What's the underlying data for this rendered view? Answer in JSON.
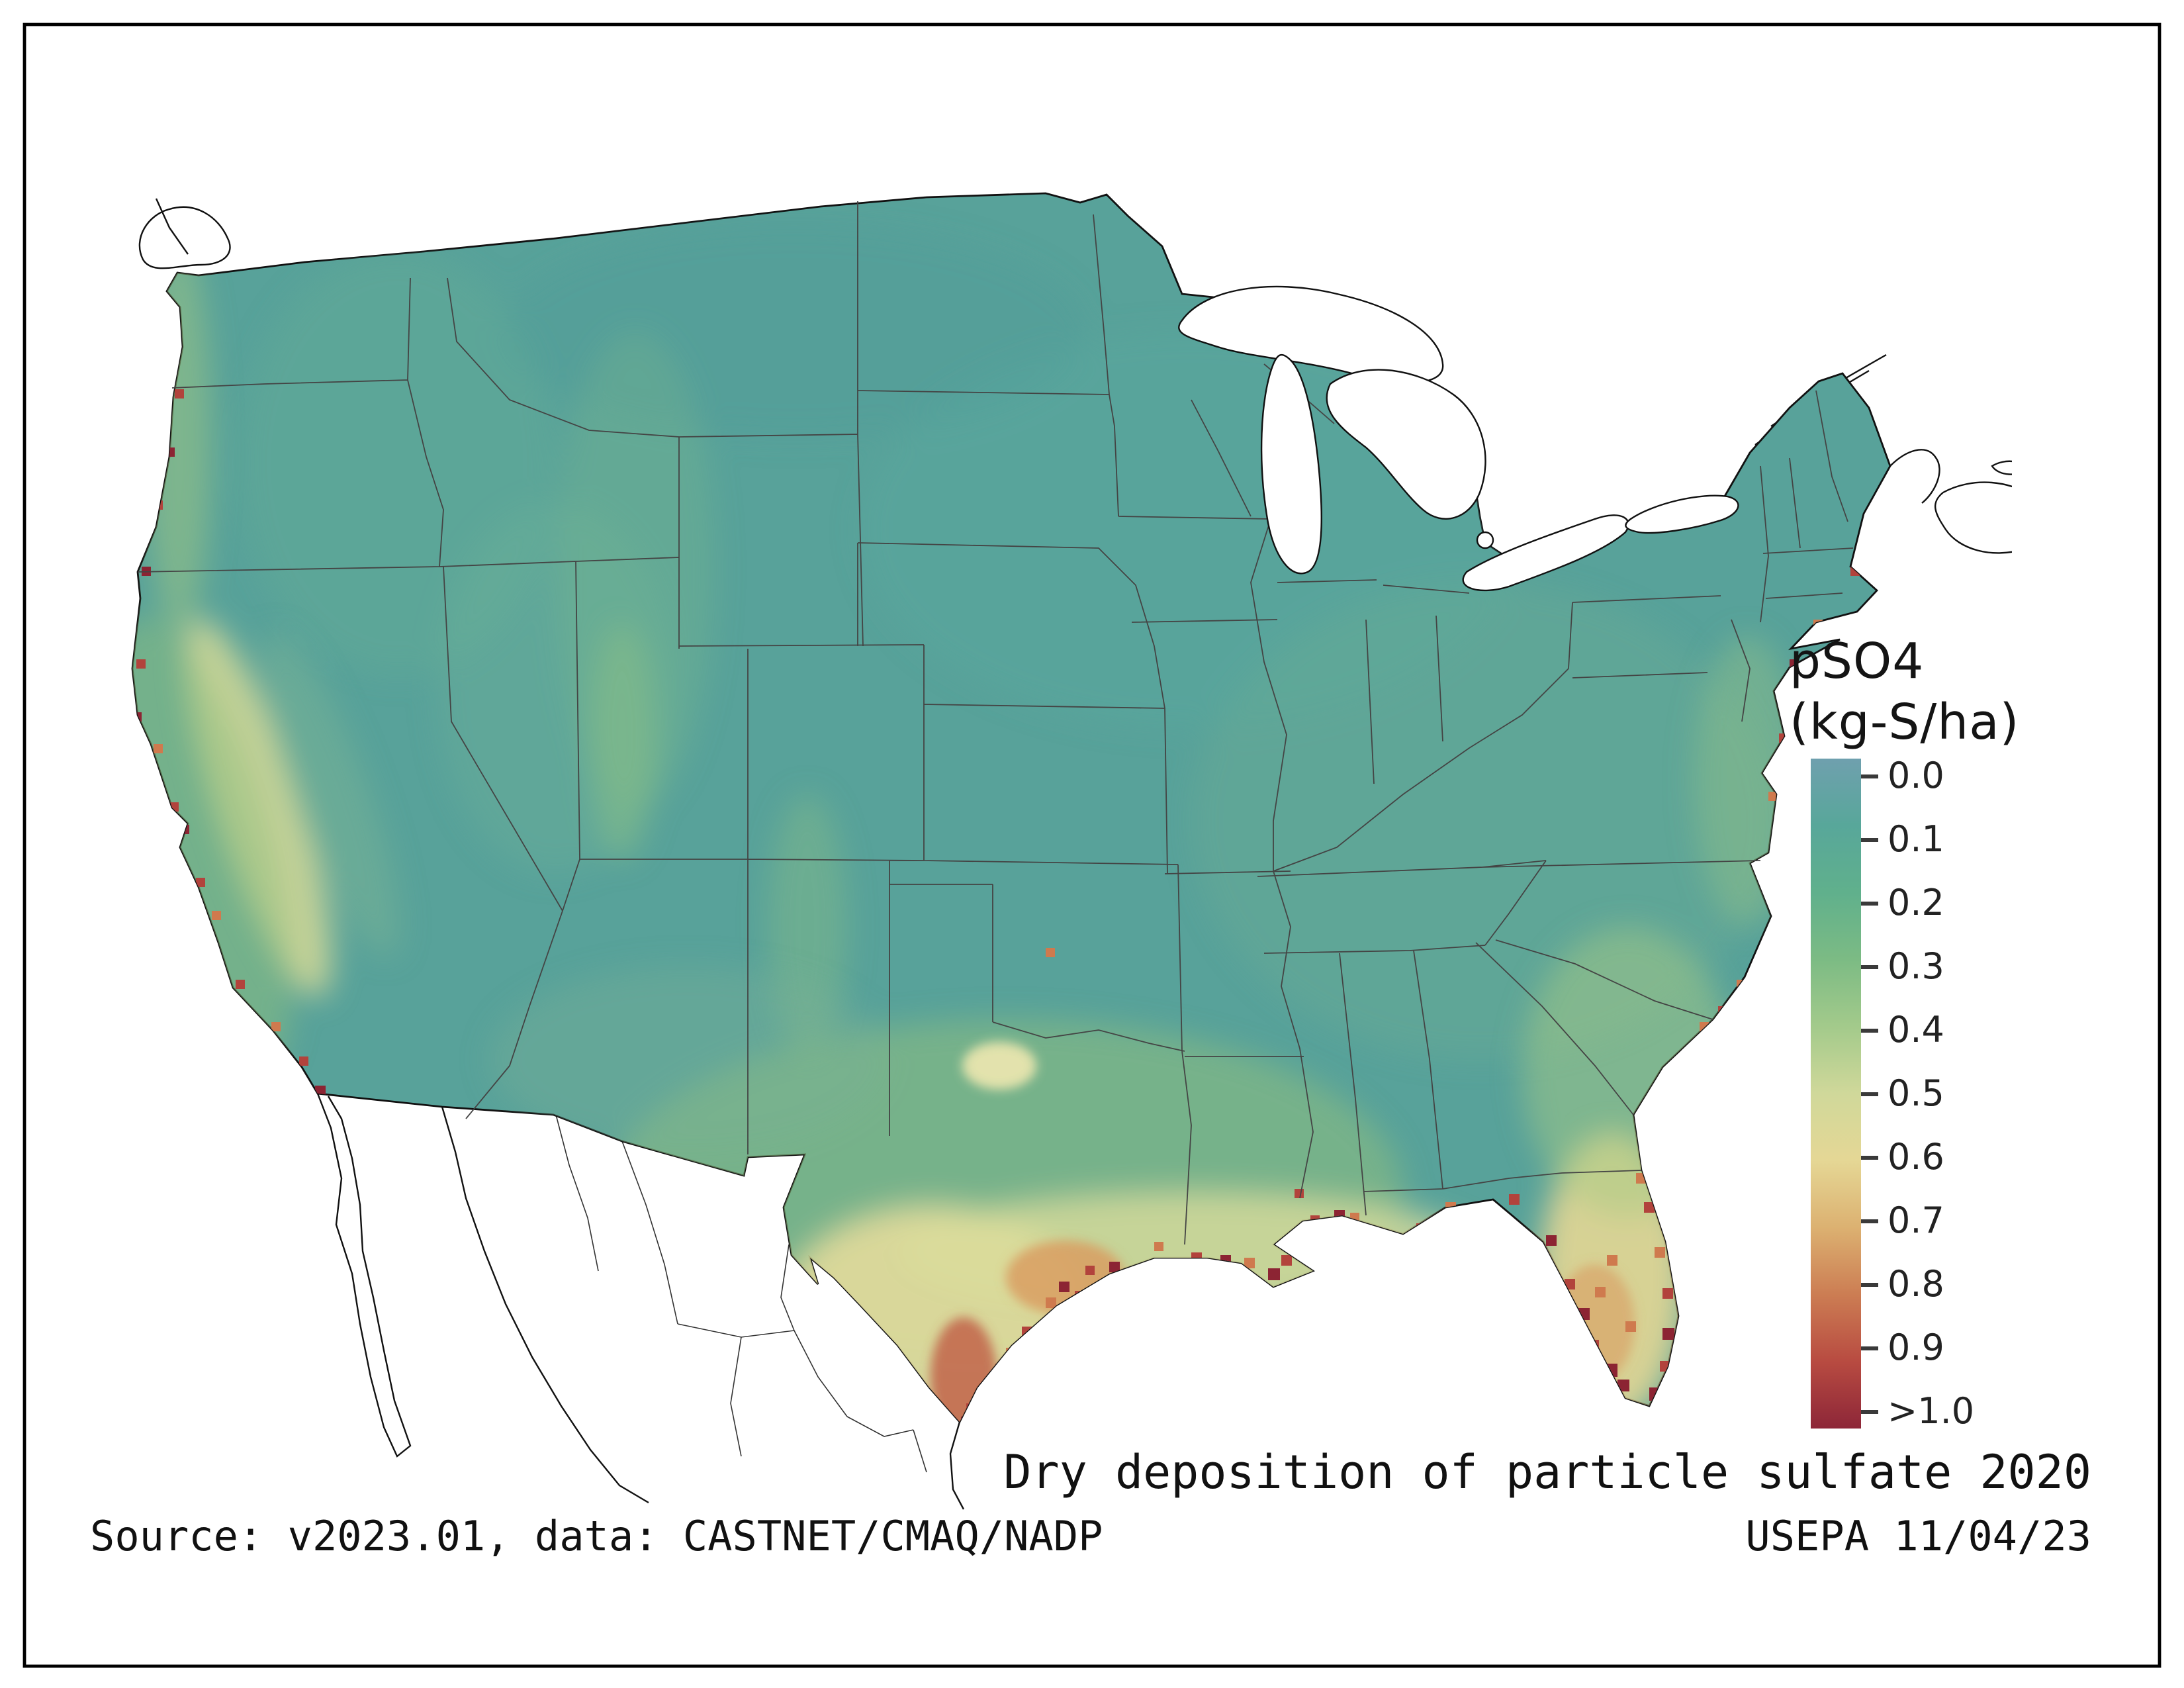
{
  "map_title": "Dry deposition of particle sulfate 2020",
  "source_line": "Source: v2023.01, data: CASTNET/CMAQ/NADP",
  "credit_line": "USEPA 11/04/23",
  "legend": {
    "title_line1": "pSO4",
    "title_line2": "(kg-S/ha)",
    "tick_labels": [
      "0.0",
      "0.1",
      "0.2",
      "0.3",
      "0.4",
      "0.5",
      "0.6",
      "0.7",
      "0.8",
      "0.9",
      ">1.0"
    ],
    "colors": [
      "#6fa0ae",
      "#58a79a",
      "#60b08c",
      "#7cbb84",
      "#a3ca8b",
      "#d0d89a",
      "#e5d795",
      "#dcb171",
      "#cc7d53",
      "#b84b41",
      "#8d2638"
    ]
  },
  "map": {
    "base_color": "#58a29a"
  },
  "chart_data": {
    "type": "heatmap",
    "title": "Dry deposition of particle sulfate 2020",
    "variable": "pSO4",
    "units": "kg-S/ha",
    "scale_tick_labels": [
      "0.0",
      "0.1",
      "0.2",
      "0.3",
      "0.4",
      "0.5",
      "0.6",
      "0.7",
      "0.8",
      "0.9",
      ">1.0"
    ],
    "scale_colors": [
      "#6fa0ae",
      "#58a79a",
      "#60b08c",
      "#7cbb84",
      "#a3ca8b",
      "#d0d89a",
      "#e5d795",
      "#dcb171",
      "#cc7d53",
      "#b84b41",
      "#8d2638"
    ],
    "legend_position": "right"
  }
}
